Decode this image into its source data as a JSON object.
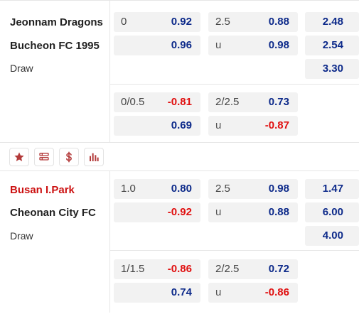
{
  "matches": [
    {
      "home": "Jeonnam Dragons",
      "away": "Bucheon FC 1995",
      "draw_label": "Draw",
      "home_highlight": false,
      "main": {
        "handicap": {
          "line": "0",
          "home": "0.92",
          "away": "0.96"
        },
        "total": {
          "line": "2.5",
          "over": "0.88",
          "under_label": "u",
          "under": "0.98"
        },
        "x12": {
          "home": "2.48",
          "away": "2.54",
          "draw": "3.30"
        }
      },
      "half": {
        "handicap": {
          "line": "0/0.5",
          "home": "-0.81",
          "away": "0.69"
        },
        "total": {
          "line": "2/2.5",
          "over": "0.73",
          "under_label": "u",
          "under": "-0.87"
        }
      }
    },
    {
      "home": "Busan I.Park",
      "away": "Cheonan City FC",
      "draw_label": "Draw",
      "home_highlight": true,
      "main": {
        "handicap": {
          "line": "1.0",
          "home": "0.80",
          "away": "-0.92"
        },
        "total": {
          "line": "2.5",
          "over": "0.98",
          "under_label": "u",
          "under": "0.88"
        },
        "x12": {
          "home": "1.47",
          "away": "6.00",
          "draw": "4.00"
        }
      },
      "half": {
        "handicap": {
          "line": "1/1.5",
          "home": "-0.86",
          "away": "0.74"
        },
        "total": {
          "line": "2/2.5",
          "over": "0.72",
          "under_label": "u",
          "under": "-0.86"
        }
      }
    }
  ],
  "toolbar": {
    "icons": [
      "star-icon",
      "list-icon",
      "dollar-icon",
      "bar-chart-icon"
    ],
    "icon_color": "#b33a3a"
  },
  "colors": {
    "positive": "#0d2a8a",
    "negative": "#e01010",
    "highlight_team": "#cc1111"
  }
}
